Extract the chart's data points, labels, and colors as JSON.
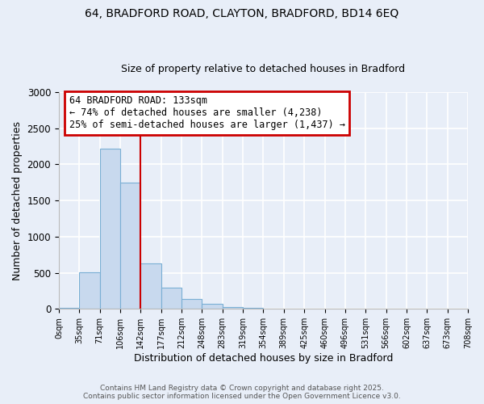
{
  "title1": "64, BRADFORD ROAD, CLAYTON, BRADFORD, BD14 6EQ",
  "title2": "Size of property relative to detached houses in Bradford",
  "xlabel": "Distribution of detached houses by size in Bradford",
  "ylabel": "Number of detached properties",
  "bin_labels": [
    "0sqm",
    "35sqm",
    "71sqm",
    "106sqm",
    "142sqm",
    "177sqm",
    "212sqm",
    "248sqm",
    "283sqm",
    "319sqm",
    "354sqm",
    "389sqm",
    "425sqm",
    "460sqm",
    "496sqm",
    "531sqm",
    "566sqm",
    "602sqm",
    "637sqm",
    "673sqm",
    "708sqm"
  ],
  "bar_heights": [
    15,
    510,
    2220,
    1750,
    635,
    290,
    140,
    75,
    30,
    10,
    0,
    0,
    0,
    0,
    0,
    0,
    0,
    0,
    0,
    0
  ],
  "bar_color": "#c8d9ee",
  "bar_edge_color": "#7aafd4",
  "vline_x": 4,
  "vline_color": "#cc0000",
  "annotation_line1": "64 BRADFORD ROAD: 133sqm",
  "annotation_line2": "← 74% of detached houses are smaller (4,238)",
  "annotation_line3": "25% of semi-detached houses are larger (1,437) →",
  "annotation_box_color": "#cc0000",
  "annotation_box_facecolor": "#ffffff",
  "ylim_max": 3000,
  "yticks": [
    0,
    500,
    1000,
    1500,
    2000,
    2500,
    3000
  ],
  "footer1": "Contains HM Land Registry data © Crown copyright and database right 2025.",
  "footer2": "Contains public sector information licensed under the Open Government Licence v3.0.",
  "bg_color": "#e8eef8",
  "plot_bg_color": "#e8eef8",
  "grid_color": "#ffffff",
  "title1_fontsize": 10,
  "title2_fontsize": 9
}
